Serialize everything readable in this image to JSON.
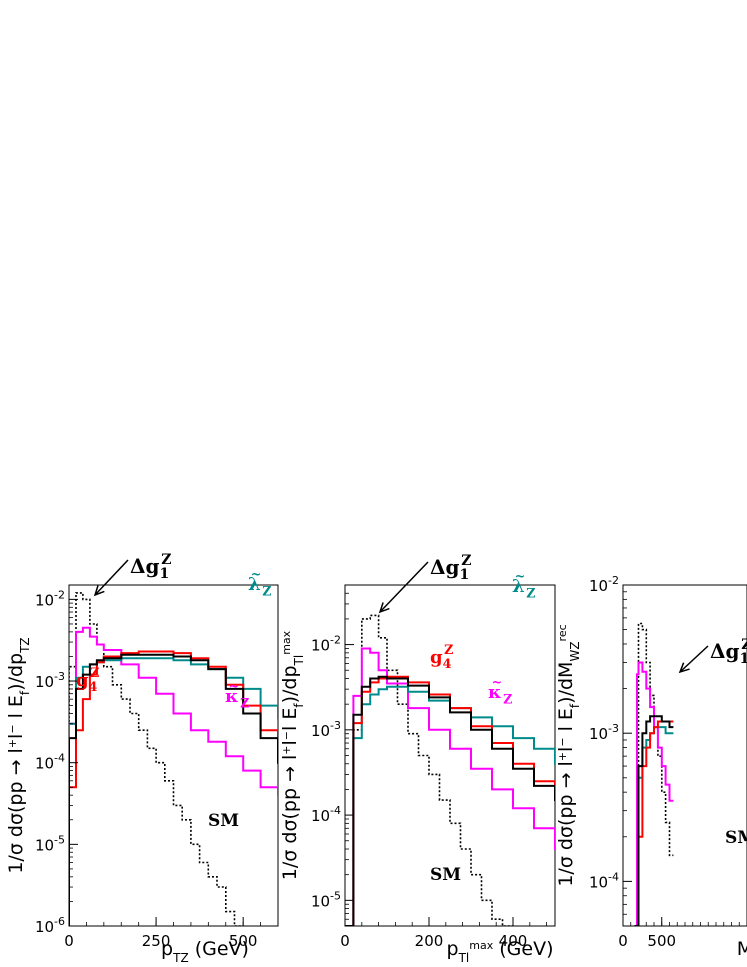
{
  "chart_data": [
    {
      "type": "line",
      "xlabel": "p_TZ (GeV)",
      "ylabel": "1/σ dσ(pp → l⁺l⁻ l E_f)/dp_TZ",
      "xlim": [
        0,
        600
      ],
      "ylim": [
        1e-06,
        0.015
      ],
      "yscale": "log",
      "xticks": [
        0,
        250,
        500
      ],
      "yticks": [
        {
          "v": 1e-06,
          "b": "10",
          "e": "-6"
        },
        {
          "v": 1e-05,
          "b": "10",
          "e": "-5"
        },
        {
          "v": 0.0001,
          "b": "10",
          "e": "-4"
        },
        {
          "v": 0.001,
          "b": "10",
          "e": "-3"
        },
        {
          "v": 0.01,
          "b": "10",
          "e": "-2"
        }
      ],
      "series": [
        {
          "name": "SM",
          "color": "#000000",
          "dash": true,
          "x": [
            0,
            20,
            40,
            60,
            80,
            100,
            125,
            150,
            175,
            200,
            225,
            250,
            275,
            300,
            325,
            350,
            375,
            400,
            425,
            450,
            475
          ],
          "y": [
            0.0015,
            0.012,
            0.01,
            0.005,
            0.0028,
            0.0015,
            0.0009,
            0.0006,
            0.0004,
            0.00025,
            0.00015,
            0.0001,
            6e-05,
            3e-05,
            2e-05,
            1e-05,
            6e-06,
            4e-06,
            3e-06,
            1.5e-06,
            1e-06
          ]
        },
        {
          "name": "κ̃_Z",
          "color": "#ff00ff",
          "dash": false,
          "x": [
            0,
            20,
            40,
            60,
            80,
            100,
            150,
            200,
            250,
            300,
            350,
            400,
            450,
            500,
            550,
            600
          ],
          "y": [
            0.0003,
            0.004,
            0.0045,
            0.0035,
            0.0028,
            0.0024,
            0.0016,
            0.0011,
            0.0007,
            0.0004,
            0.00025,
            0.00018,
            0.00012,
            8e-05,
            5e-05,
            4e-05
          ]
        },
        {
          "name": "λ̃_Z",
          "color": "#008b8b",
          "dash": false,
          "x": [
            0,
            20,
            40,
            60,
            80,
            100,
            150,
            200,
            250,
            300,
            350,
            400,
            450,
            500,
            550,
            600
          ],
          "y": [
            0.0003,
            0.0011,
            0.0015,
            0.0016,
            0.0017,
            0.0018,
            0.0019,
            0.0019,
            0.0019,
            0.0018,
            0.0016,
            0.0014,
            0.0011,
            0.0008,
            0.0005,
            0.00035
          ]
        },
        {
          "name": "g₄^Z",
          "color": "#ff0000",
          "dash": false,
          "x": [
            0,
            20,
            40,
            60,
            80,
            100,
            150,
            200,
            250,
            300,
            350,
            400,
            450,
            500,
            550,
            600
          ],
          "y": [
            5e-05,
            0.00025,
            0.0006,
            0.0012,
            0.0017,
            0.002,
            0.0022,
            0.0023,
            0.0023,
            0.0022,
            0.0019,
            0.0015,
            0.0009,
            0.0005,
            0.00025,
            0.00012
          ]
        },
        {
          "name": "Δg₁^Z",
          "color": "#000000",
          "dash": false,
          "x": [
            0,
            20,
            40,
            60,
            80,
            100,
            150,
            200,
            250,
            300,
            350,
            400,
            450,
            500,
            550,
            600
          ],
          "y": [
            0.0002,
            0.0008,
            0.0012,
            0.0016,
            0.0018,
            0.0019,
            0.0021,
            0.0021,
            0.0021,
            0.002,
            0.0018,
            0.0014,
            0.0008,
            0.0004,
            0.0002,
            0.0001
          ]
        }
      ],
      "annotations": [
        {
          "text": "Δg",
          "sub": "1",
          "sup": "Z",
          "color": "#000000"
        },
        {
          "text": "g",
          "sub": "4",
          "sup": "Z",
          "color": "#ff0000"
        },
        {
          "text": "λ",
          "sub": "Z",
          "sup": "~",
          "color": "#008b8b"
        },
        {
          "text": "κ",
          "sub": "Z",
          "sup": "~",
          "color": "#ff00ff"
        },
        {
          "text": "SM",
          "sub": "",
          "sup": "",
          "color": "#000000"
        }
      ]
    },
    {
      "type": "line",
      "xlabel": "p_Tl^max (GeV)",
      "ylabel": "1/σ dσ(pp → l⁺l⁻ l E_f)/dp_Tl^max",
      "xlim": [
        0,
        500
      ],
      "ylim": [
        5e-06,
        0.05
      ],
      "yscale": "log",
      "xticks": [
        0,
        200,
        400
      ],
      "yticks": [
        {
          "v": 1e-05,
          "b": "10",
          "e": "-5"
        },
        {
          "v": 0.0001,
          "b": "10",
          "e": "-4"
        },
        {
          "v": 0.001,
          "b": "10",
          "e": "-3"
        },
        {
          "v": 0.01,
          "b": "10",
          "e": "-2"
        }
      ],
      "series": [
        {
          "name": "SM",
          "color": "#000000",
          "dash": true,
          "x": [
            0,
            20,
            40,
            60,
            80,
            100,
            125,
            150,
            175,
            200,
            225,
            250,
            275,
            300,
            325,
            350,
            375
          ],
          "y": [
            5e-06,
            0.001,
            0.02,
            0.022,
            0.012,
            0.005,
            0.002,
            0.0009,
            0.0005,
            0.0003,
            0.00015,
            8e-05,
            4e-05,
            2e-05,
            1e-05,
            6e-06,
            5e-06
          ]
        },
        {
          "name": "κ̃_Z",
          "color": "#ff00ff",
          "dash": false,
          "x": [
            0,
            20,
            40,
            60,
            80,
            100,
            150,
            200,
            250,
            300,
            350,
            400,
            450,
            500
          ],
          "y": [
            5e-06,
            0.0025,
            0.009,
            0.008,
            0.005,
            0.0035,
            0.0018,
            0.001,
            0.0006,
            0.00035,
            0.0002,
            0.00012,
            7e-05,
            4e-05
          ]
        },
        {
          "name": "λ̃_Z",
          "color": "#008b8b",
          "dash": false,
          "x": [
            0,
            20,
            40,
            60,
            80,
            100,
            150,
            200,
            250,
            300,
            350,
            400,
            450,
            500
          ],
          "y": [
            5e-06,
            0.0008,
            0.002,
            0.0026,
            0.003,
            0.0032,
            0.0028,
            0.0022,
            0.0018,
            0.0014,
            0.0011,
            0.0008,
            0.0006,
            0.0004
          ]
        },
        {
          "name": "g₄^Z",
          "color": "#ff0000",
          "dash": false,
          "x": [
            0,
            20,
            40,
            60,
            80,
            100,
            150,
            200,
            250,
            300,
            350,
            400,
            450,
            500
          ],
          "y": [
            5e-06,
            0.0012,
            0.0028,
            0.0036,
            0.004,
            0.0042,
            0.0036,
            0.0026,
            0.0018,
            0.0011,
            0.0007,
            0.0004,
            0.00025,
            0.00018
          ]
        },
        {
          "name": "Δg₁^Z",
          "color": "#000000",
          "dash": false,
          "x": [
            0,
            20,
            40,
            60,
            80,
            100,
            150,
            200,
            250,
            300,
            350,
            400,
            450,
            500
          ],
          "y": [
            5e-06,
            0.0015,
            0.0032,
            0.004,
            0.0042,
            0.004,
            0.0033,
            0.0024,
            0.0016,
            0.001,
            0.0006,
            0.00035,
            0.00022,
            0.00015
          ]
        }
      ],
      "annotations": [
        {
          "text": "Δg",
          "sub": "1",
          "sup": "Z",
          "color": "#000000"
        },
        {
          "text": "g",
          "sub": "4",
          "sup": "Z",
          "color": "#ff0000"
        },
        {
          "text": "λ",
          "sub": "Z",
          "sup": "~",
          "color": "#008b8b"
        },
        {
          "text": "κ",
          "sub": "Z",
          "sup": "~",
          "color": "#ff00ff"
        },
        {
          "text": "SM",
          "sub": "",
          "sup": "",
          "color": "#000000"
        }
      ]
    },
    {
      "type": "line",
      "xlabel": "M",
      "ylabel": "1/σ dσ(pp → l⁺l⁻ l E_f)/dM_WZ^rec",
      "xlim": [
        0,
        1600
      ],
      "ylim": [
        5e-05,
        0.01
      ],
      "yscale": "log",
      "xticks": [
        0,
        500
      ],
      "yticks": [
        {
          "v": 0.0001,
          "b": "10",
          "e": "-4"
        },
        {
          "v": 0.001,
          "b": "10",
          "e": "-3"
        },
        {
          "v": 0.01,
          "b": "10",
          "e": "-2"
        }
      ],
      "series": [
        {
          "name": "SM",
          "color": "#000000",
          "dash": true,
          "x": [
            150,
            200,
            250,
            300,
            350,
            400,
            450,
            500,
            550,
            600
          ],
          "y": [
            5e-05,
            0.0055,
            0.005,
            0.003,
            0.0018,
            0.0011,
            0.0007,
            0.0004,
            0.00025,
            0.00015
          ]
        },
        {
          "name": "κ̃_Z",
          "color": "#ff00ff",
          "dash": false,
          "x": [
            150,
            180,
            200,
            250,
            300,
            350,
            400,
            450,
            500,
            550,
            600
          ],
          "y": [
            5e-05,
            0.0025,
            0.003,
            0.0026,
            0.002,
            0.0015,
            0.0011,
            0.0008,
            0.0006,
            0.00045,
            0.00035
          ]
        },
        {
          "name": "λ̃_Z",
          "color": "#008b8b",
          "dash": false,
          "x": [
            150,
            200,
            250,
            300,
            350,
            400,
            450,
            500,
            550,
            600
          ],
          "y": [
            5e-05,
            0.0005,
            0.0008,
            0.0009,
            0.001,
            0.0011,
            0.0011,
            0.0011,
            0.001,
            0.001
          ]
        },
        {
          "name": "g₄^Z",
          "color": "#ff0000",
          "dash": false,
          "x": [
            150,
            200,
            250,
            300,
            350,
            400,
            450,
            500,
            550,
            600
          ],
          "y": [
            5e-05,
            0.0002,
            0.0006,
            0.0008,
            0.001,
            0.0011,
            0.0012,
            0.0012,
            0.0012,
            0.0012
          ]
        },
        {
          "name": "Δg₁^Z",
          "color": "#000000",
          "dash": false,
          "x": [
            150,
            200,
            250,
            300,
            350,
            400,
            450,
            500,
            550,
            600
          ],
          "y": [
            5e-05,
            0.0006,
            0.001,
            0.0012,
            0.0013,
            0.0013,
            0.0013,
            0.0012,
            0.0012,
            0.0011
          ]
        }
      ],
      "annotations": [
        {
          "text": "Δg",
          "sub": "1",
          "sup": "Z",
          "color": "#000000"
        },
        {
          "text": "SM",
          "sub": "",
          "sup": "",
          "color": "#000000"
        }
      ]
    }
  ]
}
